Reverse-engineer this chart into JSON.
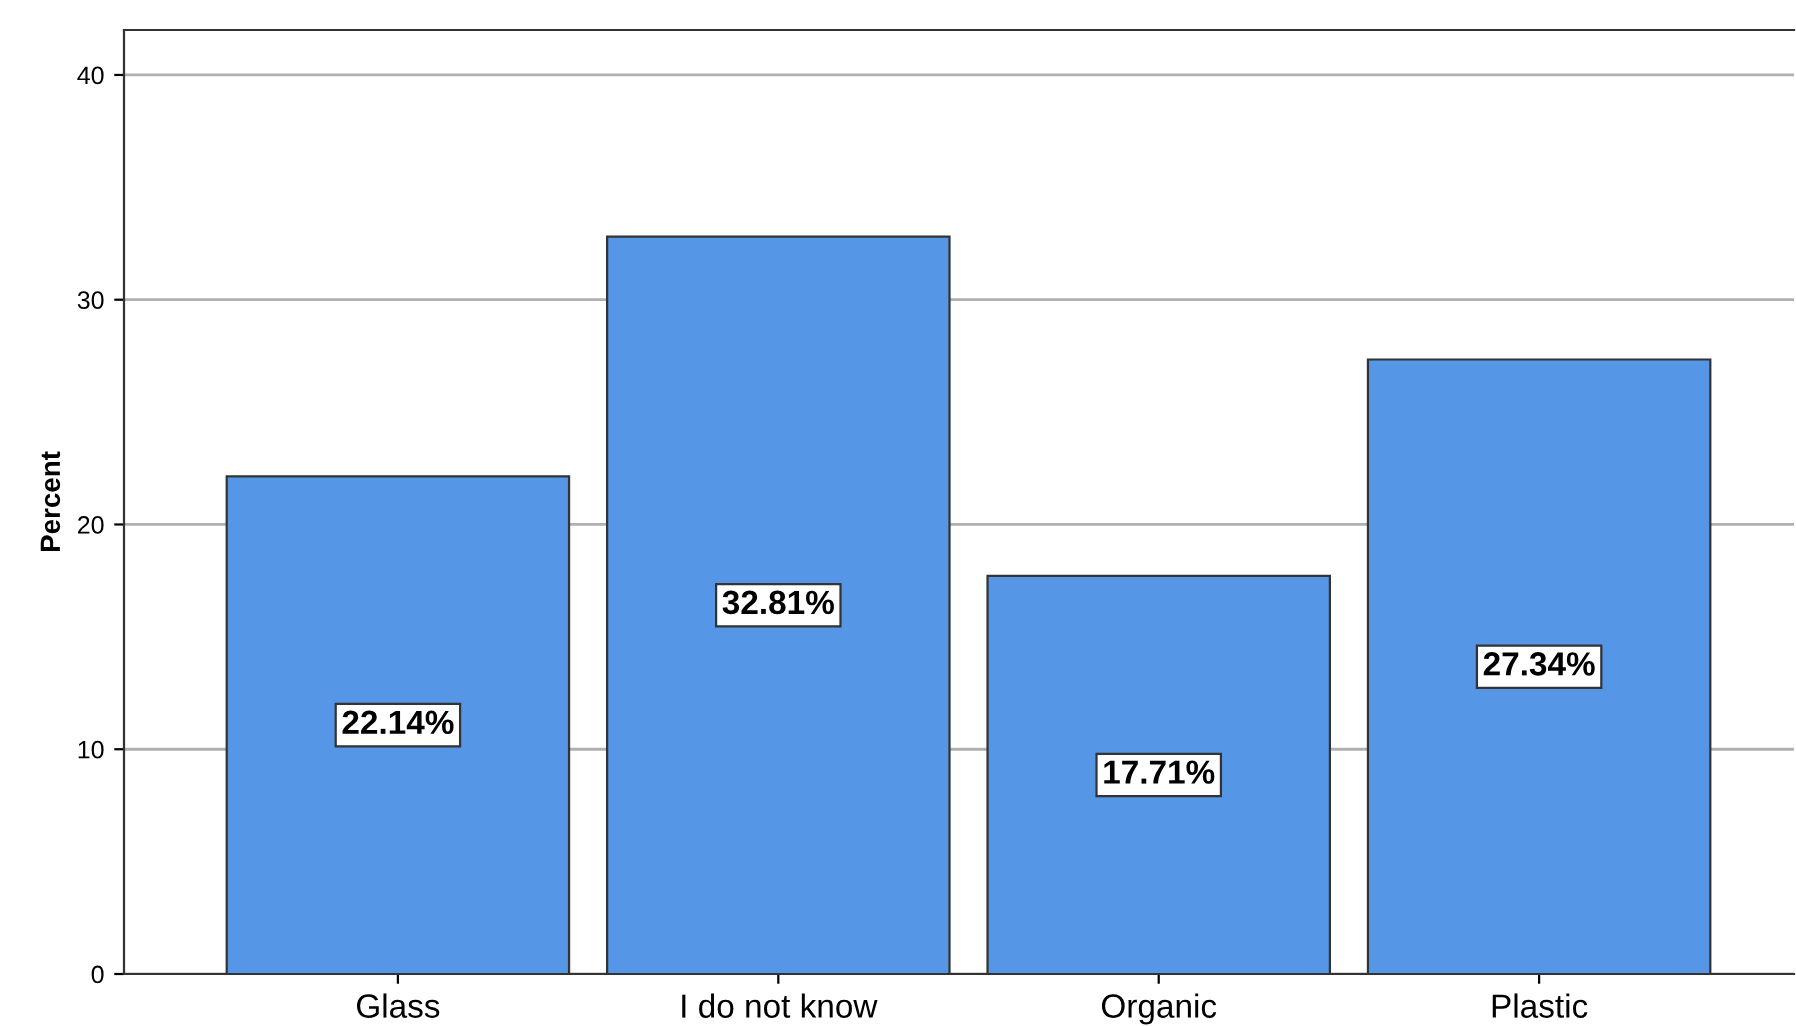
{
  "chart_data": {
    "type": "bar",
    "ylabel": "Percent",
    "categories": [
      "Glass",
      "I do not know",
      "Organic",
      "Plastic"
    ],
    "values": [
      22.14,
      32.81,
      17.71,
      27.34
    ],
    "value_labels": [
      "22.14%",
      "32.81%",
      "17.71%",
      "27.34%"
    ],
    "color": "#5596e6",
    "ylim": [
      0,
      42
    ],
    "yticks": [
      0,
      10,
      20,
      30,
      40
    ],
    "grid": "y"
  }
}
